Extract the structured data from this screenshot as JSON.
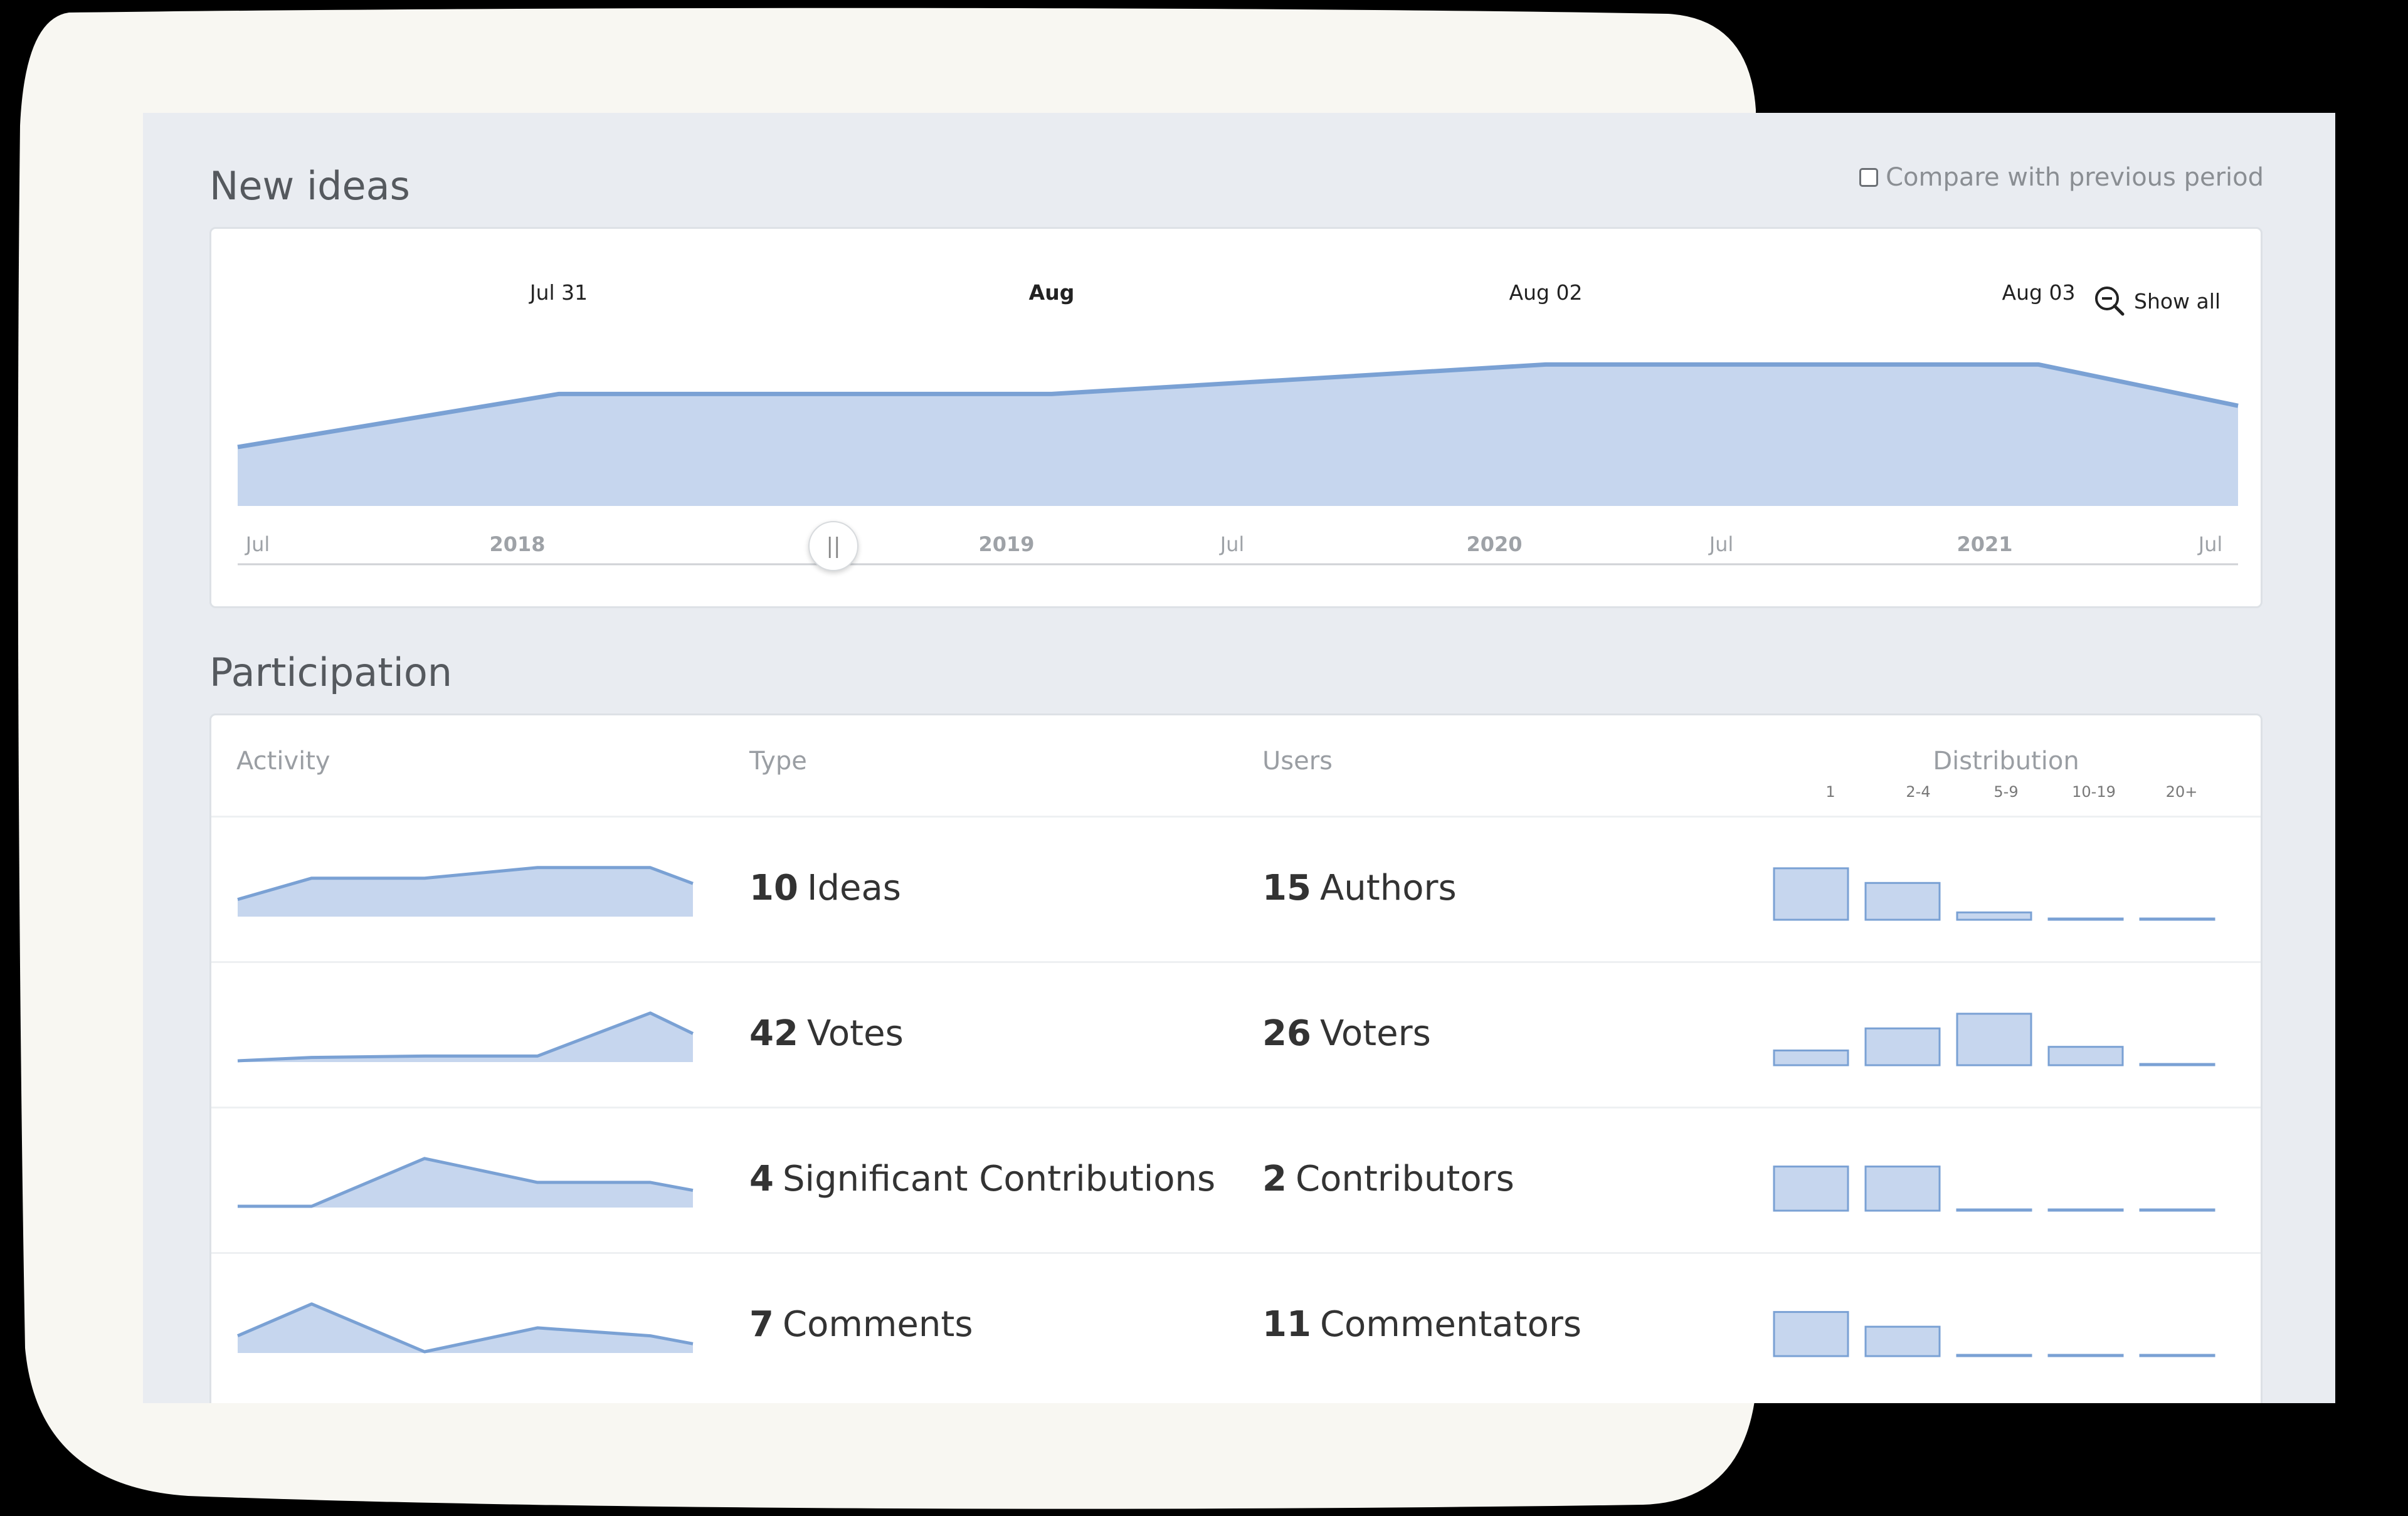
{
  "colors": {
    "accent": "#7aa1d4",
    "fill": "#c6d6ee",
    "panel": "#e9ecf1"
  },
  "new_ideas": {
    "title": "New ideas",
    "compare_label": "Compare with previous period",
    "show_all_label": "Show all",
    "show_all_icon": "zoom-out-icon",
    "main_ticks": [
      {
        "label": "Jul 31",
        "bold": false
      },
      {
        "label": "Aug",
        "bold": true
      },
      {
        "label": "Aug 02",
        "bold": false
      },
      {
        "label": "Aug 03",
        "bold": false
      }
    ],
    "main_values": [
      10,
      19,
      19,
      24,
      24,
      17
    ],
    "main_ylim": [
      0,
      30
    ],
    "navigator_ticks": [
      {
        "label": "Jul",
        "bold": false
      },
      {
        "label": "2018",
        "bold": true
      },
      {
        "label": "2019",
        "bold": true
      },
      {
        "label": "Jul",
        "bold": false
      },
      {
        "label": "2020",
        "bold": true
      },
      {
        "label": "Jul",
        "bold": false
      },
      {
        "label": "2021",
        "bold": true
      },
      {
        "label": "Jul",
        "bold": false
      }
    ]
  },
  "participation": {
    "title": "Participation",
    "columns": {
      "activity": "Activity",
      "type": "Type",
      "users": "Users",
      "distribution": "Distribution"
    },
    "bins": [
      "1",
      "2-4",
      "5-9",
      "10-19",
      "20+"
    ],
    "rows": [
      {
        "type_count": "10",
        "type_label": "Ideas",
        "users_count": "15",
        "users_label": "Authors",
        "activity": [
          3,
          7,
          7,
          9,
          9,
          6
        ],
        "distribution": [
          7,
          5,
          1,
          0,
          0
        ]
      },
      {
        "type_count": "42",
        "type_label": "Votes",
        "users_count": "26",
        "users_label": "Voters",
        "activity": [
          0,
          0.5,
          0.7,
          0.7,
          7,
          4
        ],
        "distribution": [
          2,
          5,
          7,
          2.5,
          0
        ]
      },
      {
        "type_count": "4",
        "type_label": "Significant Contributions",
        "users_count": "2",
        "users_label": "Contributors",
        "activity": [
          0,
          0,
          6,
          3,
          3,
          2
        ],
        "distribution": [
          6,
          6,
          0,
          0,
          0
        ]
      },
      {
        "type_count": "7",
        "type_label": "Comments",
        "users_count": "11",
        "users_label": "Commentators",
        "activity": [
          2,
          6,
          0,
          3,
          2,
          1
        ],
        "distribution": [
          6,
          4,
          0,
          0,
          0
        ]
      }
    ]
  }
}
